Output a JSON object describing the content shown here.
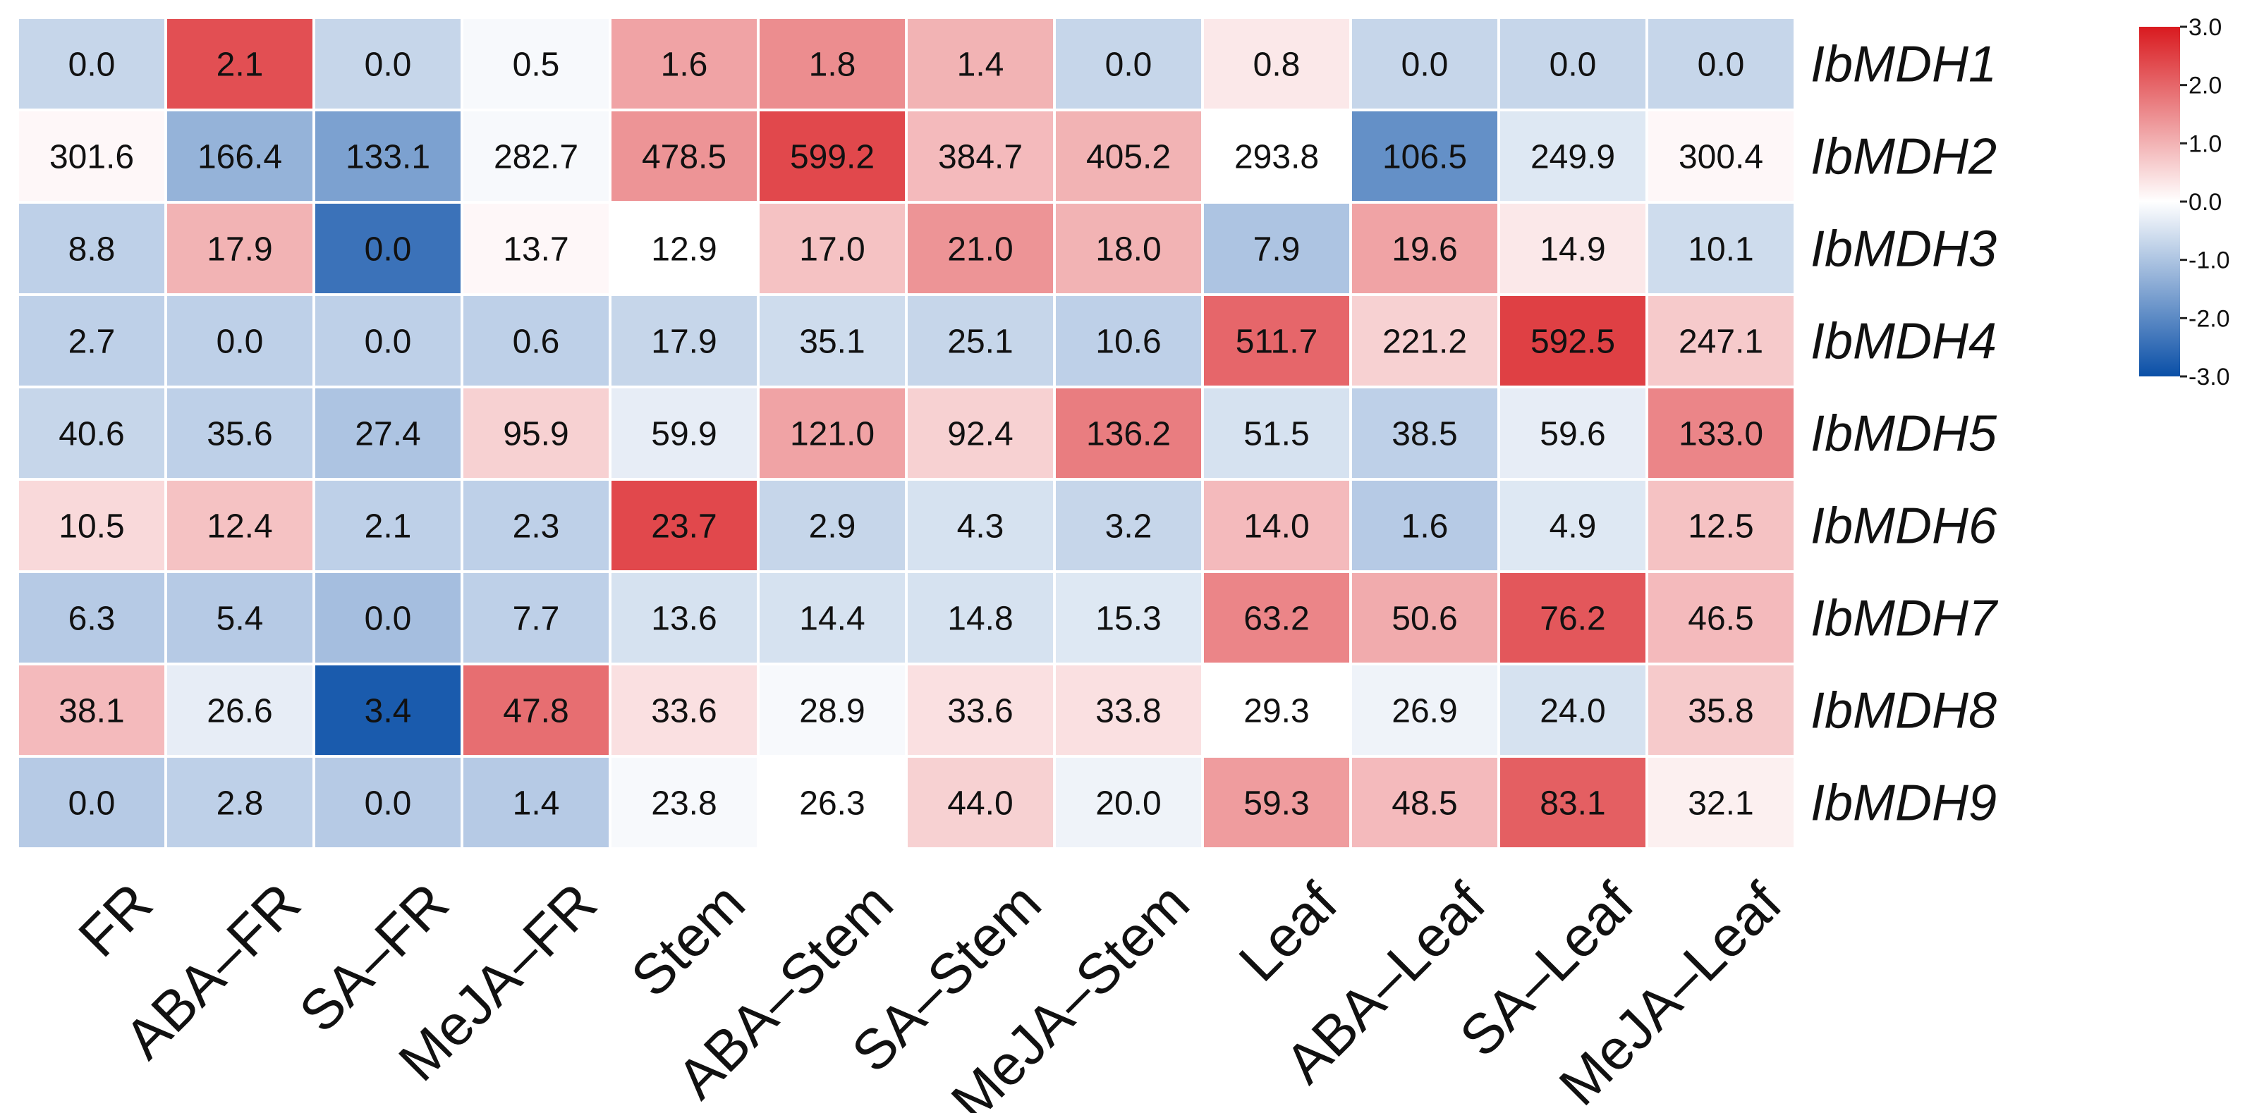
{
  "chart_data": {
    "type": "heatmap",
    "title": "",
    "xlabel": "",
    "ylabel": "",
    "columns": [
      "FR",
      "ABA–FR",
      "SA–FR",
      "MeJA–FR",
      "Stem",
      "ABA–Stem",
      "SA–Stem",
      "MeJA–Stem",
      "Leaf",
      "ABA–Leaf",
      "SA–Leaf",
      "MeJA–Leaf"
    ],
    "rows": [
      "IbMDH1",
      "IbMDH2",
      "IbMDH3",
      "IbMDH4",
      "IbMDH5",
      "IbMDH6",
      "IbMDH7",
      "IbMDH8",
      "IbMDH9"
    ],
    "values": [
      [
        "0.0",
        "2.1",
        "0.0",
        "0.5",
        "1.6",
        "1.8",
        "1.4",
        "0.0",
        "0.8",
        "0.0",
        "0.0",
        "0.0"
      ],
      [
        "301.6",
        "166.4",
        "133.1",
        "282.7",
        "478.5",
        "599.2",
        "384.7",
        "405.2",
        "293.8",
        "106.5",
        "249.9",
        "300.4"
      ],
      [
        "8.8",
        "17.9",
        "0.0",
        "13.7",
        "12.9",
        "17.0",
        "21.0",
        "18.0",
        "7.9",
        "19.6",
        "14.9",
        "10.1"
      ],
      [
        "2.7",
        "0.0",
        "0.0",
        "0.6",
        "17.9",
        "35.1",
        "25.1",
        "10.6",
        "511.7",
        "221.2",
        "592.5",
        "247.1"
      ],
      [
        "40.6",
        "35.6",
        "27.4",
        "95.9",
        "59.9",
        "121.0",
        "92.4",
        "136.2",
        "51.5",
        "38.5",
        "59.6",
        "133.0"
      ],
      [
        "10.5",
        "12.4",
        "2.1",
        "2.3",
        "23.7",
        "2.9",
        "4.3",
        "3.2",
        "14.0",
        "1.6",
        "4.9",
        "12.5"
      ],
      [
        "6.3",
        "5.4",
        "0.0",
        "7.7",
        "13.6",
        "14.4",
        "14.8",
        "15.3",
        "63.2",
        "50.6",
        "76.2",
        "46.5"
      ],
      [
        "38.1",
        "26.6",
        "3.4",
        "47.8",
        "33.6",
        "28.9",
        "33.6",
        "33.8",
        "29.3",
        "26.9",
        "24.0",
        "35.8"
      ],
      [
        "0.0",
        "2.8",
        "0.0",
        "1.4",
        "23.8",
        "26.3",
        "44.0",
        "20.0",
        "59.3",
        "48.5",
        "83.1",
        "32.1"
      ]
    ],
    "zscores": [
      [
        -0.7,
        2.3,
        -0.7,
        -0.1,
        1.2,
        1.5,
        1.0,
        -0.7,
        0.3,
        -0.7,
        -0.7,
        -0.7
      ],
      [
        0.1,
        -1.3,
        -1.6,
        -0.1,
        1.4,
        2.4,
        0.9,
        1.0,
        0.0,
        -1.9,
        -0.4,
        0.1
      ],
      [
        -0.8,
        1.0,
        -2.4,
        0.1,
        0.0,
        0.8,
        1.4,
        1.0,
        -1.0,
        1.2,
        0.3,
        -0.6
      ],
      [
        -0.8,
        -0.8,
        -0.8,
        -0.8,
        -0.7,
        -0.6,
        -0.7,
        -0.8,
        2.0,
        0.6,
        2.5,
        0.7
      ],
      [
        -0.7,
        -0.8,
        -1.0,
        0.6,
        -0.3,
        1.2,
        0.6,
        1.7,
        -0.5,
        -0.8,
        -0.3,
        1.6
      ],
      [
        0.5,
        0.8,
        -0.8,
        -0.8,
        2.4,
        -0.7,
        -0.5,
        -0.7,
        0.9,
        -0.9,
        -0.4,
        0.8
      ],
      [
        -0.9,
        -0.9,
        -1.1,
        -0.8,
        -0.5,
        -0.5,
        -0.5,
        -0.4,
        1.6,
        1.1,
        2.2,
        0.9
      ],
      [
        0.9,
        -0.3,
        -2.8,
        1.9,
        0.4,
        -0.1,
        0.4,
        0.4,
        0.0,
        -0.2,
        -0.5,
        0.7
      ],
      [
        -0.9,
        -0.8,
        -0.9,
        -0.9,
        -0.1,
        0.0,
        0.6,
        -0.2,
        1.3,
        0.9,
        2.1,
        0.2
      ]
    ],
    "colorbar": {
      "min": -3.0,
      "max": 3.0,
      "ticks": [
        "3.0",
        "2.0",
        "1.0",
        "0.0",
        "-1.0",
        "-2.0",
        "-3.0"
      ],
      "colors": {
        "low": "#0a4fa7",
        "mid": "#ffffff",
        "high": "#d91a1f"
      }
    }
  }
}
